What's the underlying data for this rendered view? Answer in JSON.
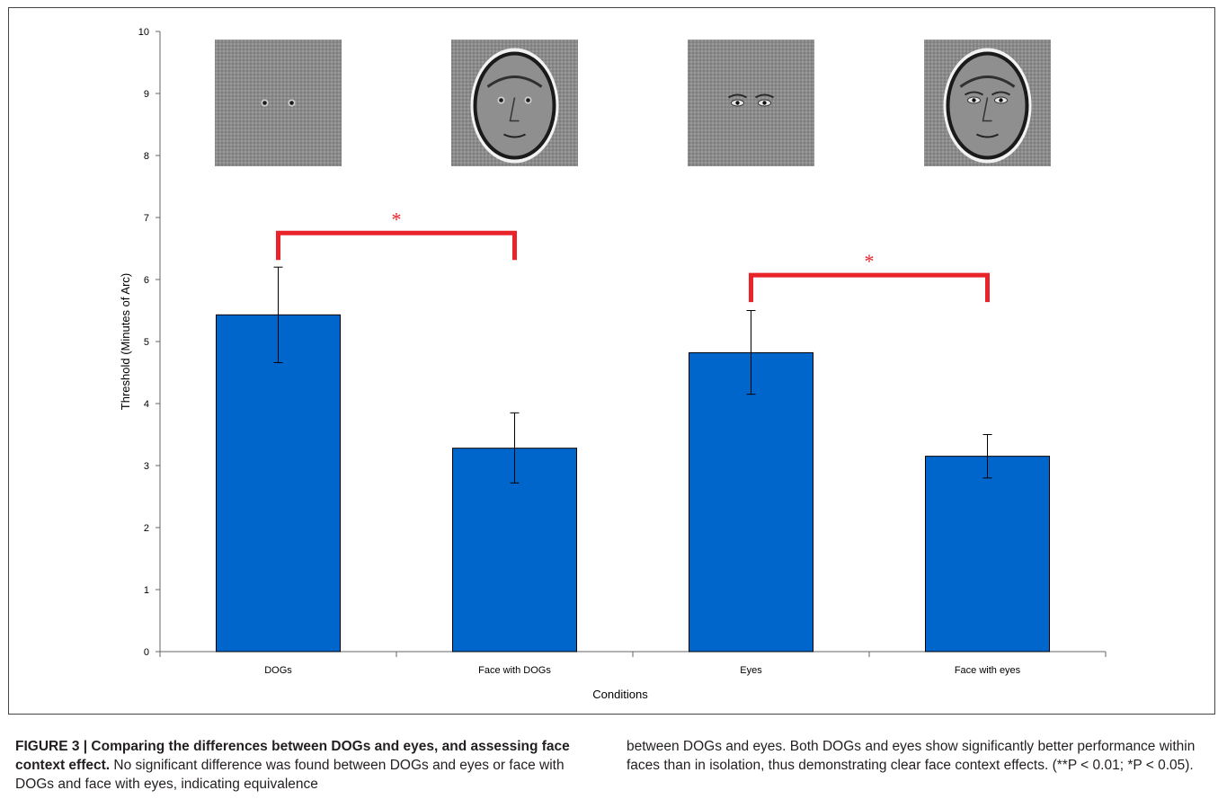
{
  "chart_data": {
    "type": "bar",
    "categories": [
      "DOGs",
      "Face with DOGs",
      "Eyes",
      "Face with eyes"
    ],
    "values": [
      5.43,
      3.28,
      4.82,
      3.15
    ],
    "error_upper": [
      6.2,
      3.85,
      5.5,
      3.5
    ],
    "error_lower": [
      4.66,
      2.72,
      4.15,
      2.8
    ],
    "xlabel": "Conditions",
    "ylabel": "Threshold (Minutes of Arc)",
    "ylim": [
      0,
      10
    ],
    "yticks": [
      "0",
      "1",
      "2",
      "3",
      "4",
      "5",
      "6",
      "7",
      "8",
      "9",
      "10"
    ],
    "bar_color": "#0066cc",
    "significance": [
      {
        "from": "DOGs",
        "to": "Face with DOGs",
        "marker": "*",
        "level": 6.75
      },
      {
        "from": "Eyes",
        "to": "Face with eyes",
        "marker": "*",
        "level": 6.07
      }
    ],
    "significance_color": "#e8232a",
    "stimulus_images": [
      "dog-pair-stimulus",
      "face-with-dogs-stimulus",
      "eyes-stimulus",
      "face-with-eyes-stimulus"
    ],
    "grid": false
  },
  "caption": {
    "title": "FIGURE 3 | Comparing the differences between DOGs and eyes, and assessing face context effect.",
    "text_left": "No significant difference was found between DOGs and eyes or face with DOGs and face with eyes, indicating equivalence",
    "text_right": "between DOGs and eyes. Both DOGs and eyes show significantly better performance within faces than in isolation, thus demonstrating clear face context effects. (**P < 0.01; *P < 0.05)."
  }
}
